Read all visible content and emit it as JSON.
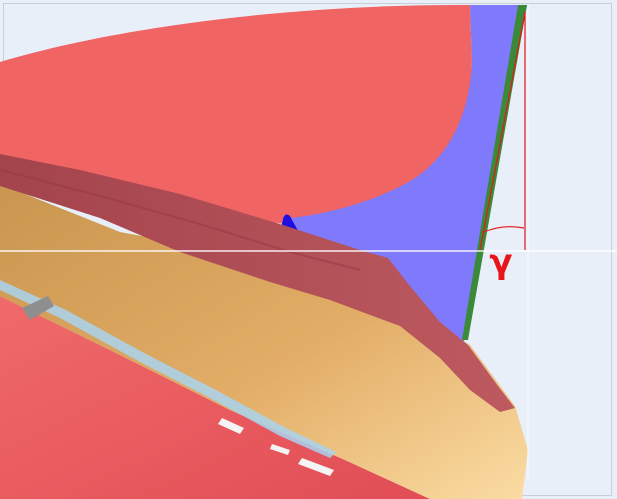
{
  "annotation": {
    "angle_symbol": "γ"
  },
  "colors": {
    "background": "#e8eff8",
    "frame_border": "#c8cfd8",
    "canopy_red": "#f06464",
    "hull_dark_red": "#b64d55",
    "lower_red": "#ee5e62",
    "deck_tan": "#e7b46c",
    "deck_light": "#f4cd8a",
    "fin_blue": "#7f79fb",
    "fin_dark_blue": "#1f10e0",
    "edge_green": "#3a8a3a",
    "annotation_red": "#e8161b",
    "panel_gray": "#8e8e8e",
    "slot_light_blue": "#a8d4ee",
    "slot_white": "#f4f4f4"
  }
}
